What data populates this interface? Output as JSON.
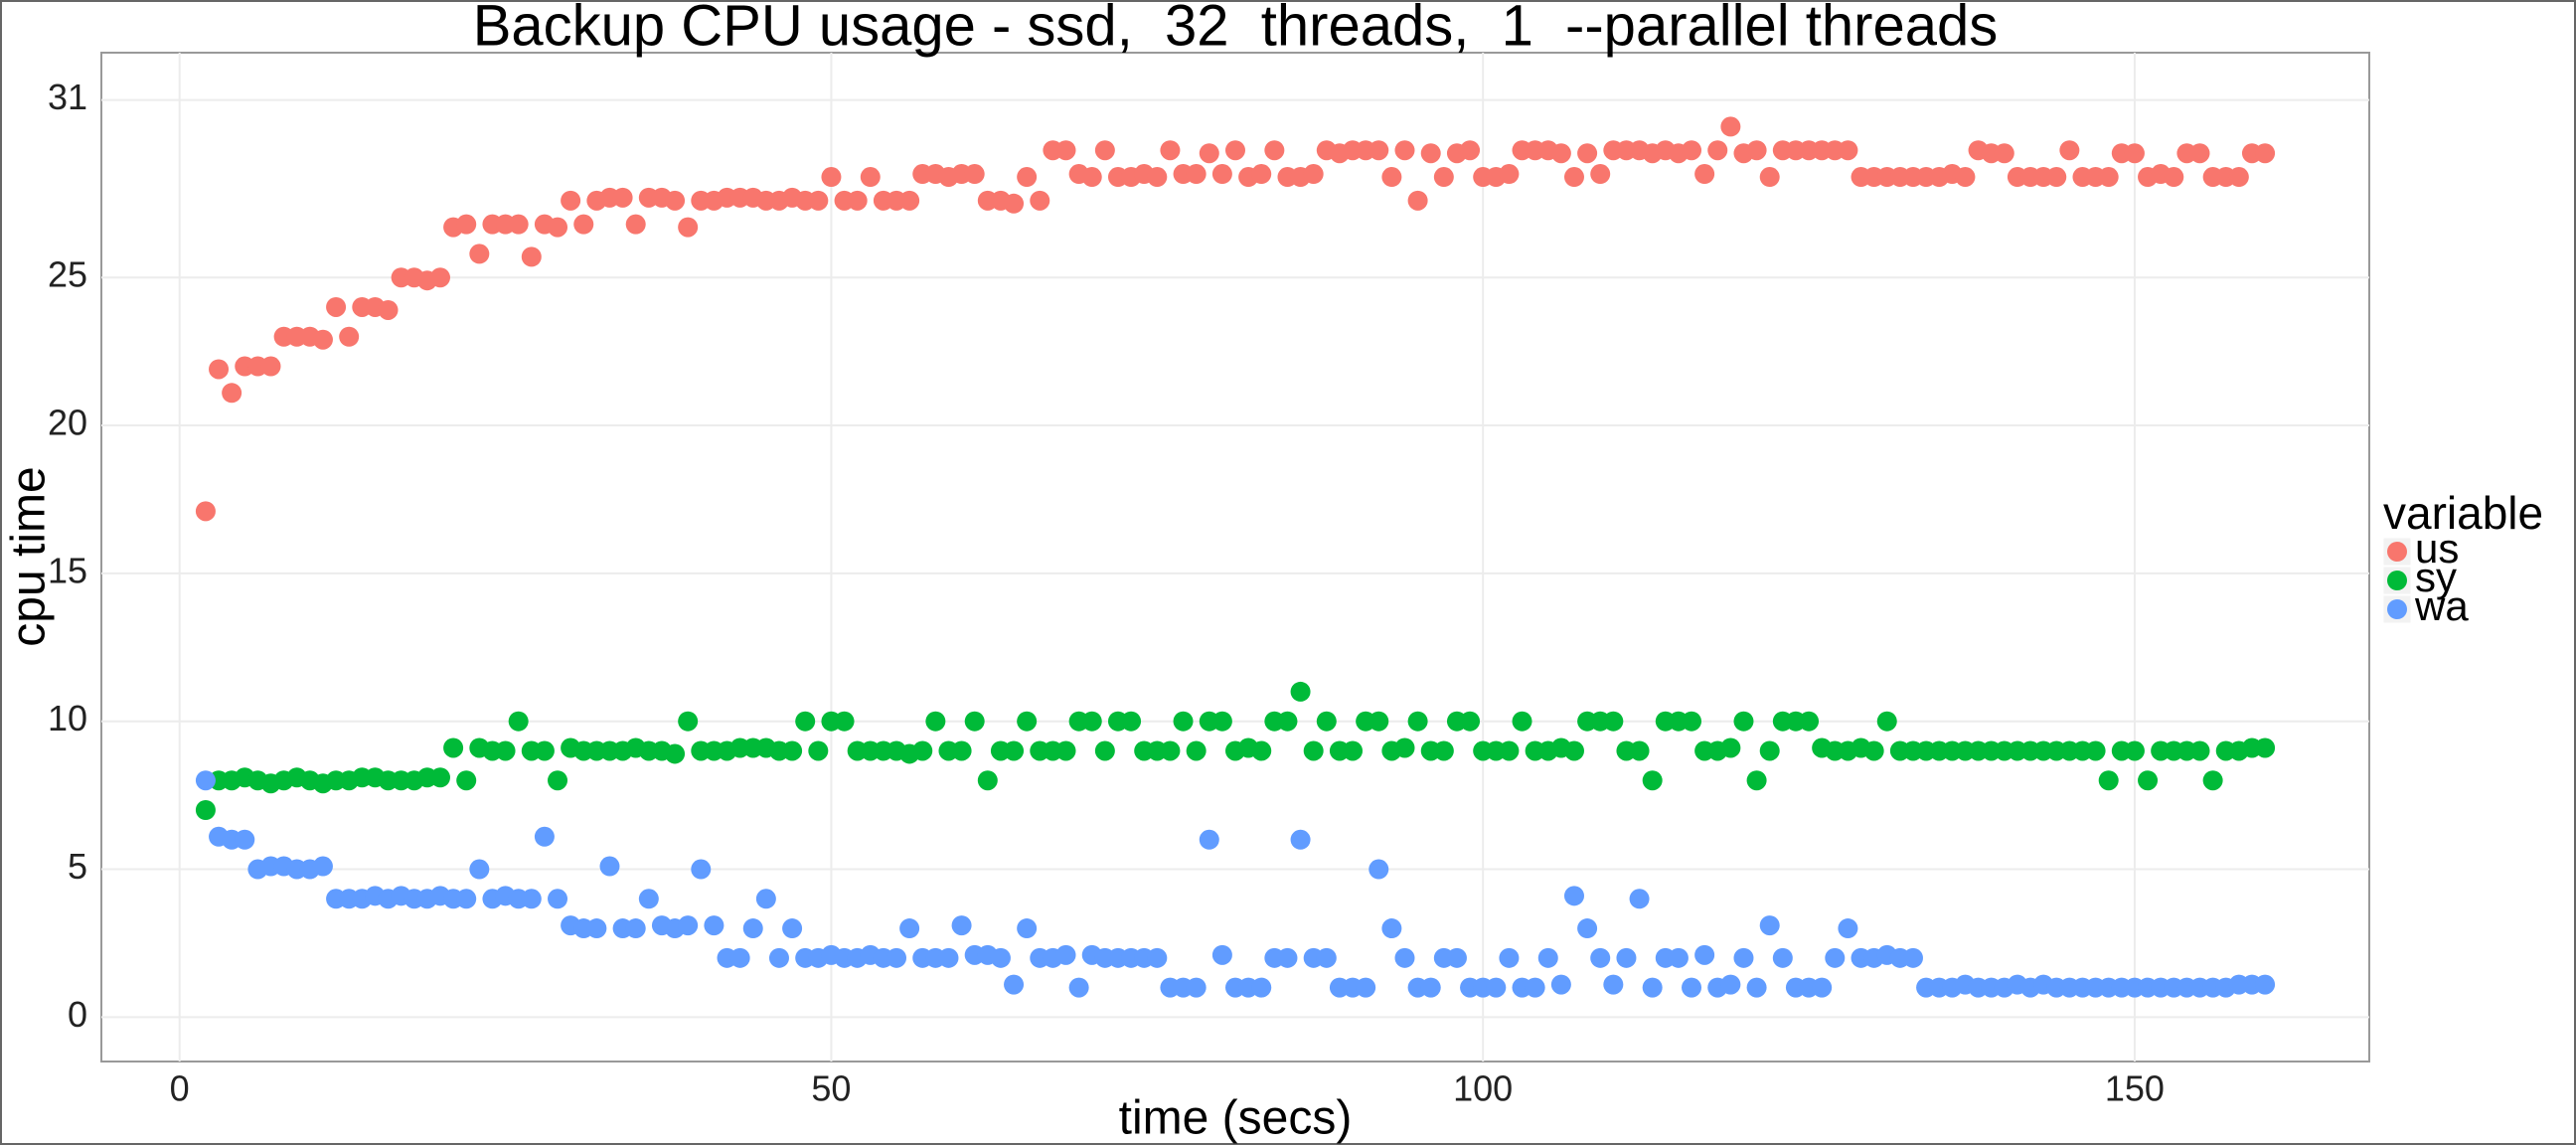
{
  "chart_data": {
    "type": "scatter",
    "title": "Backup CPU usage - ssd,  32  threads,  1  --parallel threads",
    "x_label": "time (secs)",
    "y_label": "cpu time",
    "legend_title": "variable",
    "legend_position": "right",
    "xlim": [
      -6,
      168
    ],
    "ylim": [
      -1.5,
      32.6
    ],
    "xticks": [
      0,
      50,
      100,
      150
    ],
    "yticks": [
      0,
      5,
      10,
      15,
      20,
      25,
      31
    ],
    "grid": true,
    "x": [
      2,
      3,
      4,
      5,
      6,
      7,
      8,
      9,
      10,
      11,
      12,
      13,
      14,
      15,
      16,
      17,
      18,
      19,
      20,
      21,
      22,
      23,
      24,
      25,
      26,
      27,
      28,
      29,
      30,
      31,
      32,
      33,
      34,
      35,
      36,
      37,
      38,
      39,
      40,
      41,
      42,
      43,
      44,
      45,
      46,
      47,
      48,
      49,
      50,
      51,
      52,
      53,
      54,
      55,
      56,
      57,
      58,
      59,
      60,
      61,
      62,
      63,
      64,
      65,
      66,
      67,
      68,
      69,
      70,
      71,
      72,
      73,
      74,
      75,
      76,
      77,
      78,
      79,
      80,
      81,
      82,
      83,
      84,
      85,
      86,
      87,
      88,
      89,
      90,
      91,
      92,
      93,
      94,
      95,
      96,
      97,
      98,
      99,
      100,
      101,
      102,
      103,
      104,
      105,
      106,
      107,
      108,
      109,
      110,
      111,
      112,
      113,
      114,
      115,
      116,
      117,
      118,
      119,
      120,
      121,
      122,
      123,
      124,
      125,
      126,
      127,
      128,
      129,
      130,
      131,
      132,
      133,
      134,
      135,
      136,
      137,
      138,
      139,
      140,
      141,
      142,
      143,
      144,
      145,
      146,
      147,
      148,
      149,
      150,
      151,
      152,
      153,
      154,
      155,
      156,
      157,
      158,
      159,
      160
    ],
    "series": [
      {
        "name": "us",
        "color": "#F8766D",
        "values": [
          17.1,
          21.9,
          21.1,
          22,
          22,
          22,
          23,
          23,
          23,
          22.9,
          24,
          23,
          24,
          24,
          23.9,
          25,
          25,
          24.9,
          25,
          26.7,
          26.8,
          25.8,
          26.8,
          26.8,
          26.8,
          25.7,
          26.8,
          26.7,
          27.6,
          26.8,
          27.6,
          27.7,
          27.7,
          26.8,
          27.7,
          27.7,
          27.6,
          26.7,
          27.6,
          27.6,
          27.7,
          27.7,
          27.7,
          27.6,
          27.6,
          27.7,
          27.6,
          27.6,
          28.4,
          27.6,
          27.6,
          28.4,
          27.6,
          27.6,
          27.6,
          28.5,
          28.5,
          28.4,
          28.5,
          28.5,
          27.6,
          27.6,
          27.5,
          28.4,
          27.6,
          29.3,
          29.3,
          28.5,
          28.4,
          29.3,
          28.4,
          28.4,
          28.5,
          28.4,
          29.3,
          28.5,
          28.5,
          29.2,
          28.5,
          29.3,
          28.4,
          28.5,
          29.3,
          28.4,
          28.4,
          28.5,
          29.3,
          29.2,
          29.3,
          29.3,
          29.3,
          28.4,
          29.3,
          27.6,
          29.2,
          28.4,
          29.2,
          29.3,
          28.4,
          28.4,
          28.5,
          29.3,
          29.3,
          29.3,
          29.2,
          28.4,
          29.2,
          28.5,
          29.3,
          29.3,
          29.3,
          29.2,
          29.3,
          29.2,
          29.3,
          28.5,
          29.3,
          30.1,
          29.2,
          29.3,
          28.4,
          29.3,
          29.3,
          29.3,
          29.3,
          29.3,
          29.3,
          28.4,
          28.4,
          28.4,
          28.4,
          28.4,
          28.4,
          28.4,
          28.5,
          28.4,
          29.3,
          29.2,
          29.2,
          28.4,
          28.4,
          28.4,
          28.4,
          29.3,
          28.4,
          28.4,
          28.4,
          29.2,
          29.2,
          28.4,
          28.5,
          28.4,
          29.2,
          29.2,
          28.4,
          28.4,
          28.4,
          29.2,
          29.2
        ]
      },
      {
        "name": "sy",
        "color": "#00BA38",
        "values": [
          7,
          8,
          8,
          8.1,
          8,
          7.9,
          8,
          8.1,
          8,
          7.9,
          8,
          8,
          8.1,
          8.1,
          8,
          8,
          8,
          8.1,
          8.1,
          9.1,
          8,
          9.1,
          9,
          9,
          10,
          9,
          9,
          8,
          9.1,
          9,
          9,
          9,
          9,
          9.1,
          9,
          9,
          8.9,
          10,
          9,
          9,
          9,
          9.1,
          9.1,
          9.1,
          9,
          9,
          10,
          9,
          10,
          10,
          9,
          9,
          9,
          9,
          8.9,
          9,
          10,
          9,
          9,
          10,
          8,
          9,
          9,
          10,
          9,
          9,
          9,
          10,
          10,
          9,
          10,
          10,
          9,
          9,
          9,
          10,
          9,
          10,
          10,
          9,
          9.1,
          9,
          10,
          10,
          11,
          9,
          10,
          9,
          9,
          10,
          10,
          9,
          9.1,
          10,
          9,
          9,
          10,
          10,
          9,
          9,
          9,
          10,
          9,
          9,
          9.1,
          9,
          10,
          10,
          10,
          9,
          9,
          8,
          10,
          10,
          10,
          9,
          9,
          9.1,
          10,
          8,
          9,
          10,
          10,
          10,
          9.1,
          9,
          9,
          9.1,
          9,
          10,
          9,
          9,
          9,
          9,
          9,
          9,
          9,
          9,
          9,
          9,
          9,
          9,
          9,
          9,
          9,
          9,
          8,
          9,
          9,
          8,
          9,
          9,
          9,
          9,
          8,
          9,
          9,
          9.1,
          9.1
        ]
      },
      {
        "name": "wa",
        "color": "#619CFF",
        "values": [
          8,
          6.1,
          6,
          6,
          5,
          5.1,
          5.1,
          5,
          5,
          5.1,
          4,
          4,
          4,
          4.1,
          4,
          4.1,
          4,
          4,
          4.1,
          4,
          4,
          5,
          4,
          4.1,
          4,
          4,
          6.1,
          4,
          3.1,
          3,
          3,
          5.1,
          3,
          3,
          4,
          3.1,
          3,
          3.1,
          5,
          3.1,
          2,
          2,
          3,
          4,
          2,
          3,
          2,
          2,
          2.1,
          2,
          2,
          2.1,
          2,
          2,
          3,
          2,
          2,
          2,
          3.1,
          2.1,
          2.1,
          2,
          1.1,
          3,
          2,
          2,
          2.1,
          1,
          2.1,
          2,
          2,
          2,
          2,
          2,
          1,
          1,
          1,
          6,
          2.1,
          1,
          1,
          1,
          2,
          2,
          6,
          2,
          2,
          1,
          1,
          1,
          5,
          3,
          2,
          1,
          1,
          2,
          2,
          1,
          1,
          1,
          2,
          1,
          1,
          2,
          1.1,
          4.1,
          3,
          2,
          1.1,
          2,
          4,
          1,
          2,
          2,
          1,
          2.1,
          1,
          1.1,
          2,
          1,
          3.1,
          2,
          1,
          1,
          1,
          2,
          3,
          2,
          2,
          2.1,
          2,
          2,
          1,
          1,
          1,
          1.1,
          1,
          1,
          1,
          1.1,
          1,
          1.1,
          1,
          1,
          1,
          1,
          1,
          1,
          1,
          1,
          1,
          1,
          1,
          1,
          1,
          1,
          1.1,
          1.1,
          1.1
        ]
      }
    ]
  }
}
